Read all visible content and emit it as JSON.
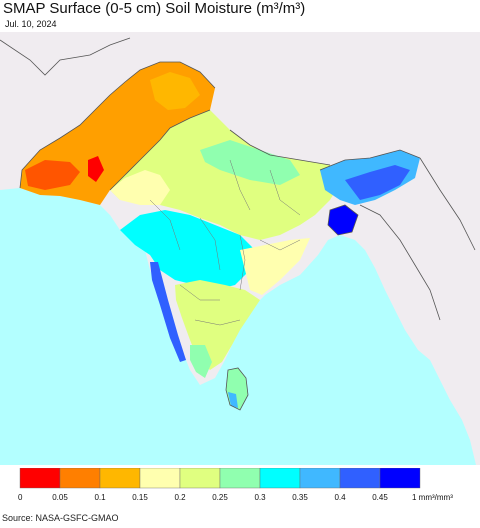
{
  "title": "SMAP Surface (0-5 cm) Soil Moisture (m³/m³)",
  "date": "Jul. 10, 2024",
  "source": "Source: NASA-GSFC-GMAO",
  "colors": {
    "ocean": "#b3ffff",
    "land_nodata": "#f0ecf0",
    "border": "#555555"
  },
  "legend": {
    "ticks": [
      "0",
      "0.05",
      "0.1",
      "0.15",
      "0.2",
      "0.25",
      "0.3",
      "0.35",
      "0.4",
      "0.45"
    ],
    "end_label": "1 mm³/mm³",
    "colors": [
      "#ff0000",
      "#ff7f00",
      "#ffb700",
      "#ffffaf",
      "#e0ff80",
      "#90ffaf",
      "#00ffff",
      "#40b8ff",
      "#3060ff",
      "#0000ff"
    ]
  }
}
